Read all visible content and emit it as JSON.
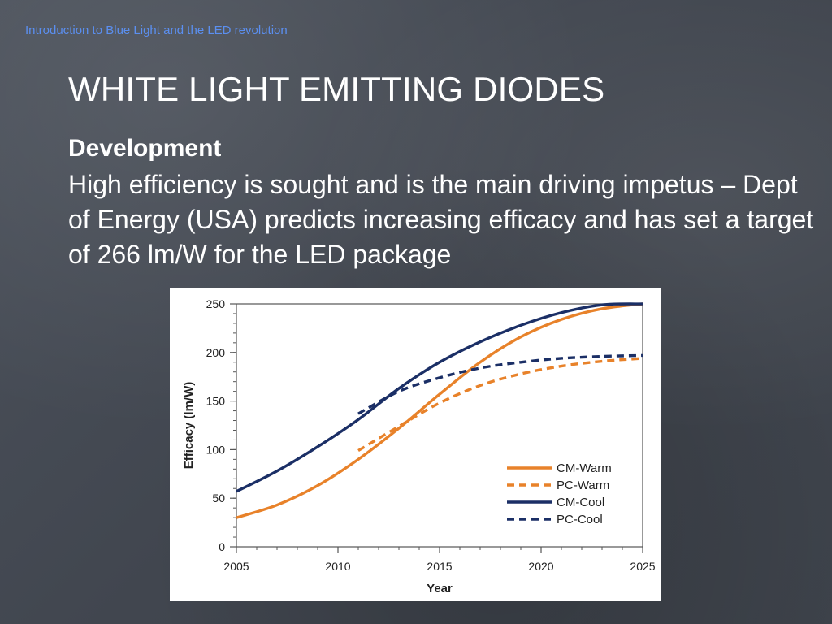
{
  "slide": {
    "header_note": "Introduction to Blue Light and the LED revolution",
    "title": "WHITE LIGHT EMITTING DIODES",
    "subheading": "Development",
    "body": "High efficiency is sought and is the main driving impetus – Dept of Energy (USA) predicts increasing efficacy and has set a target of 266 lm/W for the LED package"
  },
  "colors": {
    "header_note": "#5b8ff0",
    "warm": "#e8822a",
    "cool": "#1b2f66"
  },
  "chart_data": {
    "type": "line",
    "xlabel": "Year",
    "ylabel": "Efficacy (lm/W)",
    "xlim": [
      2005,
      2025
    ],
    "ylim": [
      0,
      250
    ],
    "xticks": [
      2005,
      2010,
      2015,
      2020,
      2025
    ],
    "yticks": [
      0,
      50,
      100,
      150,
      200,
      250
    ],
    "legend_position": "bottom-right",
    "grid": false,
    "series": [
      {
        "name": "CM-Warm",
        "style": "solid",
        "color": "#e8822a",
        "x": [
          2005,
          2007,
          2009,
          2011,
          2013,
          2015,
          2017,
          2019,
          2021,
          2023,
          2025
        ],
        "y": [
          30,
          43,
          63,
          90,
          122,
          157,
          190,
          216,
          234,
          245,
          250
        ]
      },
      {
        "name": "PC-Warm",
        "style": "dashed",
        "color": "#e8822a",
        "x": [
          2011,
          2013,
          2015,
          2017,
          2019,
          2021,
          2023,
          2025
        ],
        "y": [
          99,
          124,
          148,
          166,
          178,
          186,
          191,
          194
        ]
      },
      {
        "name": "CM-Cool",
        "style": "solid",
        "color": "#1b2f66",
        "x": [
          2005,
          2007,
          2009,
          2011,
          2013,
          2015,
          2017,
          2019,
          2021,
          2023,
          2025
        ],
        "y": [
          57,
          78,
          103,
          131,
          163,
          190,
          211,
          228,
          241,
          249,
          250
        ]
      },
      {
        "name": "PC-Cool",
        "style": "dashed",
        "color": "#1b2f66",
        "x": [
          2011,
          2013,
          2015,
          2017,
          2019,
          2021,
          2023,
          2025
        ],
        "y": [
          137,
          160,
          174,
          184,
          190,
          194,
          196,
          197
        ]
      }
    ]
  }
}
